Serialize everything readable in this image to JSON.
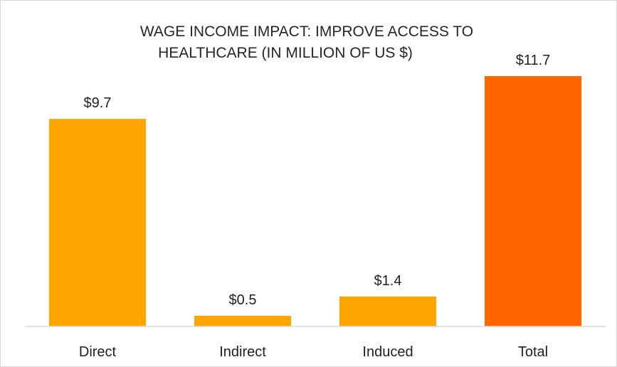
{
  "chart_data": {
    "type": "bar",
    "title": "WAGE INCOME IMPACT: IMPROVE ACCESS TO HEALTHCARE (IN MILLION OF US $)",
    "title_lines": [
      "WAGE INCOME IMPACT: IMPROVE ACCESS TO",
      "HEALTHCARE (IN MILLION OF US $)"
    ],
    "categories": [
      "Direct",
      "Indirect",
      "Induced",
      "Total"
    ],
    "values": [
      9.7,
      0.5,
      1.4,
      11.7
    ],
    "data_labels": [
      "$9.7",
      "$0.5",
      "$1.4",
      "$11.7"
    ],
    "bar_colors": [
      "#FFA500",
      "#FFA500",
      "#FFA500",
      "#FF6600"
    ],
    "xlabel": "",
    "ylabel": "",
    "ylim": [
      0,
      12.5
    ],
    "grid": false,
    "legend": "none"
  }
}
